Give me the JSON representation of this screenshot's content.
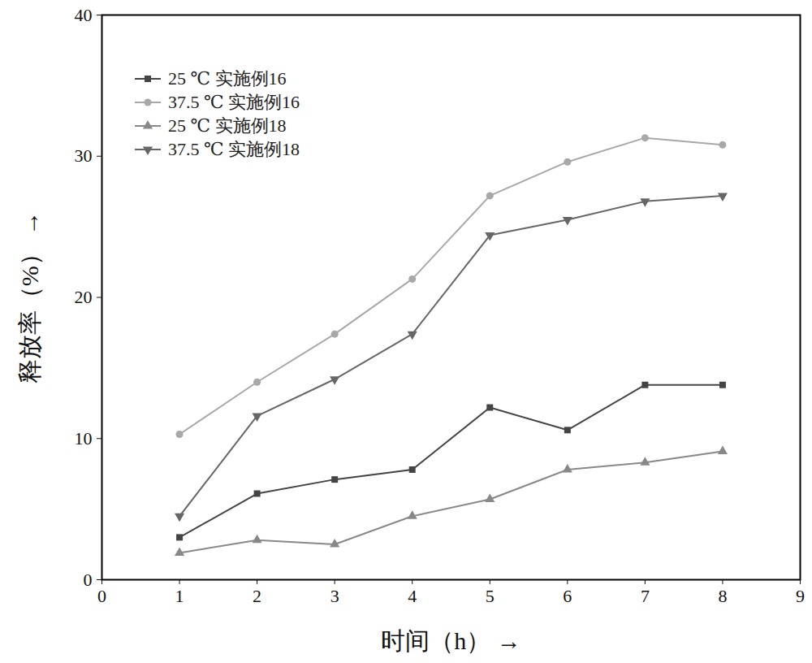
{
  "chart_data": {
    "type": "line",
    "x_label": "时间（h）",
    "y_label": "释放率（%）",
    "x": [
      1,
      2,
      3,
      4,
      5,
      6,
      7,
      8
    ],
    "xlim": [
      0,
      9
    ],
    "xticks": [
      0,
      1,
      2,
      3,
      4,
      5,
      6,
      7,
      8,
      9
    ],
    "ylim": [
      0,
      40
    ],
    "yticks": [
      0,
      10,
      20,
      30,
      40
    ],
    "grid": false,
    "legend": "top-left",
    "series": [
      {
        "name": "25 ℃ 实施例16",
        "color": "#444444",
        "marker": "square",
        "values": [
          3.0,
          6.1,
          7.1,
          7.8,
          12.2,
          10.6,
          13.8,
          13.8
        ]
      },
      {
        "name": "37.5 ℃ 实施例16",
        "color": "#a8a8a8",
        "marker": "circle",
        "values": [
          10.3,
          14.0,
          17.4,
          21.3,
          27.2,
          29.6,
          31.3,
          30.8
        ]
      },
      {
        "name": "25 ℃ 实施例18",
        "color": "#888888",
        "marker": "triangle",
        "values": [
          1.9,
          2.8,
          2.5,
          4.5,
          5.7,
          7.8,
          8.3,
          9.1
        ]
      },
      {
        "name": "37.5 ℃ 实施例18",
        "color": "#666666",
        "marker": "triangle-down",
        "values": [
          4.5,
          11.6,
          14.2,
          17.4,
          24.4,
          25.5,
          26.8,
          27.2
        ]
      }
    ]
  }
}
